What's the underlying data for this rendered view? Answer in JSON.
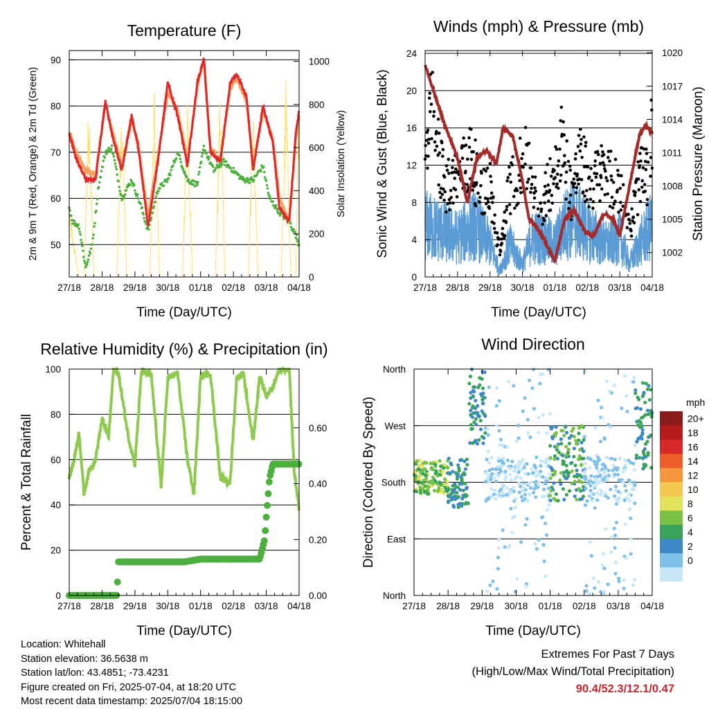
{
  "chart_data": [
    {
      "type": "line",
      "title": "Temperature (F)",
      "xlabel": "Time (Day/UTC)",
      "ylabel": "2m & 9m T (Red, Orange) & 2m Td (Green)",
      "y2label": "Solar Insolation (Yellow)",
      "x_ticks": [
        "27/18",
        "28/18",
        "29/18",
        "30/18",
        "01/18",
        "02/18",
        "03/18",
        "04/18"
      ],
      "ylim": [
        43,
        92
      ],
      "y_ticks": [
        "50",
        "60",
        "70",
        "80",
        "90"
      ],
      "y_tick_values": [
        50,
        60,
        70,
        80,
        90
      ],
      "y2lim": [
        0,
        1050
      ],
      "y2_ticks": [
        "0",
        "200",
        "400",
        "600",
        "800",
        "1000"
      ],
      "y2_tick_values": [
        0,
        200,
        400,
        600,
        800,
        1000
      ],
      "grid": true,
      "series": [
        {
          "color": "#f4a261",
          "x": [
            0,
            0.2,
            0.5,
            0.8,
            1.1,
            1.3,
            1.6,
            1.9,
            2.1,
            2.4,
            2.7,
            3.0,
            3.3,
            3.6,
            3.9,
            4.1,
            4.3,
            4.6,
            4.9,
            5.1,
            5.4,
            5.6,
            5.9,
            6.2,
            6.4,
            6.7,
            6.9,
            7.0
          ],
          "y": [
            74.5,
            70,
            66,
            65,
            80.5,
            75,
            67,
            77,
            72,
            56,
            69,
            83,
            79,
            68,
            84,
            90,
            71,
            68,
            84,
            86,
            81,
            67,
            79,
            73,
            60,
            55,
            73,
            78
          ]
        },
        {
          "color": "#e0282a",
          "x": [
            0,
            0.2,
            0.5,
            0.8,
            1.1,
            1.3,
            1.6,
            1.9,
            2.1,
            2.4,
            2.7,
            3.0,
            3.3,
            3.6,
            3.9,
            4.1,
            4.3,
            4.6,
            4.9,
            5.1,
            5.4,
            5.6,
            5.9,
            6.2,
            6.4,
            6.7,
            6.9,
            7.0
          ],
          "y": [
            74,
            69,
            64,
            64,
            81,
            74,
            66,
            78,
            71,
            54,
            68,
            85,
            78,
            67,
            85,
            90.4,
            70,
            68,
            85,
            87,
            82,
            66,
            80,
            72,
            58,
            55,
            74,
            79
          ]
        },
        {
          "color": "#4caf3e",
          "x": [
            0,
            0.1,
            0.3,
            0.5,
            0.7,
            0.9,
            1.1,
            1.3,
            1.6,
            1.9,
            2.2,
            2.4,
            2.7,
            3.0,
            3.3,
            3.6,
            3.9,
            4.1,
            4.4,
            4.7,
            5.0,
            5.3,
            5.6,
            5.9,
            6.1,
            6.4,
            6.7,
            6.9,
            7.0
          ],
          "y": [
            58,
            55,
            54,
            45,
            50,
            63,
            70,
            71,
            60,
            64,
            58,
            53,
            62,
            64,
            70,
            64,
            63,
            71,
            66,
            68,
            66,
            64,
            64,
            67,
            60,
            57,
            55,
            52,
            50
          ]
        },
        {
          "color": "#ffe066",
          "x": [
            0.0,
            0.3,
            0.45,
            0.6,
            0.75,
            0.9,
            1.05,
            1.3,
            1.45,
            1.6,
            1.75,
            1.9,
            2.05,
            2.3,
            2.45,
            2.6,
            2.75,
            2.9,
            3.05,
            3.3,
            3.45,
            3.6,
            3.75,
            3.9,
            4.05,
            4.3,
            4.45,
            4.6,
            4.75,
            4.9,
            5.05,
            5.3,
            5.45,
            5.6,
            5.75,
            5.9,
            6.05,
            6.3,
            6.45,
            6.6,
            6.75,
            6.9,
            7.0
          ],
          "y": [
            330,
            0,
            0,
            920,
            0,
            0,
            0,
            0,
            0,
            950,
            0,
            0,
            0,
            0,
            0,
            940,
            0,
            0,
            0,
            0,
            0,
            960,
            0,
            0,
            0,
            0,
            0,
            950,
            0,
            0,
            0,
            0,
            0,
            870,
            0,
            0,
            0,
            0,
            0,
            960,
            0,
            0,
            1000
          ],
          "axis": "right"
        }
      ]
    },
    {
      "type": "scatter",
      "title": "Winds (mph) & Pressure (mb)",
      "xlabel": "Time (Day/UTC)",
      "ylabel": "Sonic Wind & Gust (Blue, Black)",
      "y2label": "Station Pressure (Maroon)",
      "x_ticks": [
        "27/18",
        "28/18",
        "29/18",
        "30/18",
        "01/18",
        "02/18",
        "03/18",
        "04/18"
      ],
      "ylim": [
        0,
        24.3
      ],
      "y_ticks": [
        "0",
        "4",
        "8",
        "12",
        "16",
        "20",
        "24"
      ],
      "y_tick_values": [
        0,
        4,
        8,
        12,
        16,
        20,
        24
      ],
      "y2lim": [
        999.8,
        1020.2
      ],
      "y2_ticks": [
        "1002",
        "1005",
        "1008",
        "1011",
        "1014",
        "1017",
        "1020"
      ],
      "y2_tick_values": [
        1002,
        1005,
        1008,
        1011,
        1014,
        1017,
        1020
      ],
      "grid": true,
      "series": [
        {
          "color": "#5b9bd5",
          "x": [
            0,
            0.5,
            1.0,
            1.5,
            2.0,
            2.3,
            2.6,
            3.0,
            3.3,
            3.6,
            4.0,
            4.3,
            4.6,
            5.0,
            5.3,
            5.6,
            6.0,
            6.3,
            6.6,
            7.0
          ],
          "y": [
            8,
            7,
            6,
            8,
            5,
            1,
            5,
            2,
            6,
            6,
            5,
            8,
            9,
            7,
            6,
            5,
            6,
            2,
            5,
            8
          ]
        },
        {
          "color": "#000000",
          "x": [
            0,
            0.2,
            0.4,
            0.6,
            0.9,
            1.1,
            1.4,
            1.7,
            2.0,
            2.3,
            2.6,
            2.9,
            3.2,
            3.5,
            3.8,
            4.0,
            4.2,
            4.5,
            4.8,
            5.1,
            5.4,
            5.7,
            6.0,
            6.3,
            6.6,
            6.9,
            7.0
          ],
          "y": [
            15,
            22,
            17,
            12,
            13,
            14,
            16,
            12,
            12,
            3,
            12,
            14,
            16,
            8,
            12,
            15,
            19,
            11,
            16,
            12,
            14,
            13,
            12,
            6,
            13,
            14,
            20
          ]
        },
        {
          "color": "#a52a2a",
          "axis": "right",
          "x": [
            0,
            0.3,
            0.6,
            1.0,
            1.3,
            1.6,
            1.9,
            2.2,
            2.4,
            2.7,
            3.0,
            3.2,
            3.4,
            3.7,
            4.0,
            4.3,
            4.6,
            4.9,
            5.2,
            5.5,
            5.8,
            6.0,
            6.3,
            6.6,
            6.8,
            7.0
          ],
          "y": [
            1018.9,
            1016.2,
            1013.5,
            1010.5,
            1006.5,
            1010.6,
            1011.2,
            1010.0,
            1013.2,
            1012.5,
            1008.5,
            1005.0,
            1004.5,
            1003.0,
            1001.2,
            1005.0,
            1005.8,
            1004.0,
            1003.5,
            1005.5,
            1005.0,
            1003.5,
            1008.0,
            1012.5,
            1013.5,
            1012.8
          ]
        }
      ]
    },
    {
      "type": "line",
      "title": "Relative Humidity (%) & Precipitation (in)",
      "xlabel": "Time (Day/UTC)",
      "ylabel": "Percent & Total Rainfall",
      "x_ticks": [
        "27/18",
        "28/18",
        "29/18",
        "30/18",
        "01/18",
        "02/18",
        "03/18",
        "04/18"
      ],
      "ylim": [
        0,
        100
      ],
      "y_ticks": [
        "0",
        "20",
        "40",
        "60",
        "80",
        "100"
      ],
      "y_tick_values": [
        0,
        20,
        40,
        60,
        80,
        100
      ],
      "y2lim": [
        0,
        0.81
      ],
      "y2_ticks": [
        "0.00",
        "0.20",
        "0.40",
        "0.60"
      ],
      "y2_tick_values": [
        0.0,
        0.2,
        0.4,
        0.6
      ],
      "grid": true,
      "series": [
        {
          "color": "#8fc94f",
          "x": [
            0,
            0.15,
            0.3,
            0.45,
            0.6,
            0.8,
            1.0,
            1.2,
            1.35,
            1.5,
            1.8,
            2.0,
            2.2,
            2.5,
            2.8,
            3.0,
            3.3,
            3.6,
            3.8,
            4.0,
            4.3,
            4.6,
            4.9,
            5.1,
            5.3,
            5.6,
            5.8,
            6.0,
            6.2,
            6.4,
            6.7,
            6.85,
            7.0
          ],
          "y": [
            52,
            60,
            72,
            45,
            55,
            60,
            78,
            70,
            100,
            98,
            70,
            58,
            99,
            97,
            48,
            96,
            98,
            60,
            45,
            97,
            98,
            52,
            50,
            96,
            98,
            68,
            97,
            88,
            92,
            100,
            100,
            55,
            38
          ]
        },
        {
          "color": "#4caf3e",
          "axis": "right",
          "x": [
            0,
            0.5,
            1.0,
            1.45,
            1.5,
            2.5,
            3.5,
            4.0,
            4.5,
            5.0,
            5.5,
            5.8,
            5.95,
            6.0,
            6.05,
            6.1,
            6.2,
            6.5,
            7.0
          ],
          "y": [
            0.0,
            0.0,
            0.0,
            0.0,
            0.12,
            0.12,
            0.12,
            0.13,
            0.13,
            0.13,
            0.13,
            0.13,
            0.2,
            0.28,
            0.35,
            0.42,
            0.47,
            0.47,
            0.47
          ]
        }
      ]
    },
    {
      "type": "scatter",
      "title": "Wind Direction",
      "xlabel": "Time (Day/UTC)",
      "ylabel": "Direction (Colored By Speed)",
      "x_ticks": [
        "27/18",
        "28/18",
        "29/18",
        "30/18",
        "01/18",
        "02/18",
        "03/18",
        "04/18"
      ],
      "ylim": [
        0,
        360
      ],
      "y_ticks": [
        "North",
        "East",
        "South",
        "West",
        "North"
      ],
      "y_tick_values": [
        0,
        90,
        180,
        270,
        360
      ],
      "grid": true,
      "colorbar": {
        "title": "mph",
        "labels": [
          "20+",
          "18",
          "16",
          "14",
          "12",
          "10",
          "8",
          "6",
          "4",
          "2",
          "0"
        ],
        "colors": [
          "#8b1a1a",
          "#b71c1c",
          "#d62828",
          "#ef5d2b",
          "#f8963d",
          "#f2c94c",
          "#e1e45a",
          "#7ac143",
          "#3aa35b",
          "#3e88c8",
          "#7ec0e8",
          "#c8e7f8"
        ]
      },
      "points_summary": [
        {
          "x_range": [
            0,
            1.0
          ],
          "dir_range": [
            160,
            215
          ],
          "speed": "6-12"
        },
        {
          "x_range": [
            1.0,
            1.6
          ],
          "dir_range": [
            140,
            220
          ],
          "speed": "4-8"
        },
        {
          "x_range": [
            1.6,
            2.1
          ],
          "dir_range": [
            240,
            360
          ],
          "speed": "4-8"
        },
        {
          "x_range": [
            2.1,
            4.0
          ],
          "dir_range": [
            0,
            360
          ],
          "speed": "0-4"
        },
        {
          "x_range": [
            4.0,
            5.0
          ],
          "dir_range": [
            150,
            270
          ],
          "speed": "4-10"
        },
        {
          "x_range": [
            5.0,
            6.5
          ],
          "dir_range": [
            0,
            360
          ],
          "speed": "0-4"
        },
        {
          "x_range": [
            6.5,
            7.0
          ],
          "dir_range": [
            200,
            340
          ],
          "speed": "4-8"
        }
      ]
    }
  ],
  "info": {
    "location": "Location: Whitehall",
    "elevation": "Station elevation: 36.5638 m",
    "latlon": "Station lat/lon: 43.4851; -73.4231",
    "created": "Figure created on Fri, 2025-07-04, at 18:20 UTC",
    "recent": "Most recent data timestamp: 2025/07/04 18:15:00"
  },
  "extremes": {
    "line1": "Extremes For Past 7 Days",
    "line2": "(High/Low/Max Wind/Total Precipitation)",
    "values": "90.4/52.3/12.1/0.47"
  }
}
